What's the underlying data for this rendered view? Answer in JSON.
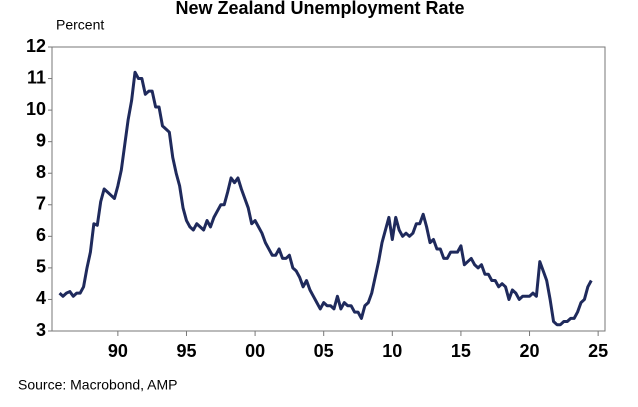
{
  "chart_data": {
    "type": "line",
    "title": "New Zealand Unemployment Rate",
    "y_label": "Percent",
    "source": "Source: Macrobond, AMP",
    "xlim": [
      1985.2,
      2025.5
    ],
    "ylim": [
      3,
      12
    ],
    "yticks": [
      3,
      4,
      5,
      6,
      7,
      8,
      9,
      10,
      11,
      12
    ],
    "xticks": [
      {
        "value": 1990,
        "label": "90"
      },
      {
        "value": 1995,
        "label": "95"
      },
      {
        "value": 2000,
        "label": "00"
      },
      {
        "value": 2005,
        "label": "05"
      },
      {
        "value": 2010,
        "label": "10"
      },
      {
        "value": 2015,
        "label": "15"
      },
      {
        "value": 2020,
        "label": "20"
      },
      {
        "value": 2025,
        "label": "25"
      }
    ],
    "grid": false,
    "x": [
      1985.75,
      1986,
      1986.25,
      1986.5,
      1986.75,
      1987,
      1987.25,
      1987.5,
      1987.75,
      1988,
      1988.25,
      1988.5,
      1988.75,
      1989,
      1989.25,
      1989.5,
      1989.75,
      1990,
      1990.25,
      1990.5,
      1990.75,
      1991,
      1991.25,
      1991.5,
      1991.75,
      1992,
      1992.25,
      1992.5,
      1992.75,
      1993,
      1993.25,
      1993.5,
      1993.75,
      1994,
      1994.25,
      1994.5,
      1994.75,
      1995,
      1995.25,
      1995.5,
      1995.75,
      1996,
      1996.25,
      1996.5,
      1996.75,
      1997,
      1997.25,
      1997.5,
      1997.75,
      1998,
      1998.25,
      1998.5,
      1998.75,
      1999,
      1999.25,
      1999.5,
      1999.75,
      2000,
      2000.25,
      2000.5,
      2000.75,
      2001,
      2001.25,
      2001.5,
      2001.75,
      2002,
      2002.25,
      2002.5,
      2002.75,
      2003,
      2003.25,
      2003.5,
      2003.75,
      2004,
      2004.25,
      2004.5,
      2004.75,
      2005,
      2005.25,
      2005.5,
      2005.75,
      2006,
      2006.25,
      2006.5,
      2006.75,
      2007,
      2007.25,
      2007.5,
      2007.75,
      2008,
      2008.25,
      2008.5,
      2008.75,
      2009,
      2009.25,
      2009.5,
      2009.75,
      2010,
      2010.25,
      2010.5,
      2010.75,
      2011,
      2011.25,
      2011.5,
      2011.75,
      2012,
      2012.25,
      2012.5,
      2012.75,
      2013,
      2013.25,
      2013.5,
      2013.75,
      2014,
      2014.25,
      2014.5,
      2014.75,
      2015,
      2015.25,
      2015.5,
      2015.75,
      2016,
      2016.25,
      2016.5,
      2016.75,
      2017,
      2017.25,
      2017.5,
      2017.75,
      2018,
      2018.25,
      2018.5,
      2018.75,
      2019,
      2019.25,
      2019.5,
      2019.75,
      2020,
      2020.25,
      2020.5,
      2020.75,
      2021,
      2021.25,
      2021.5,
      2021.75,
      2022,
      2022.25,
      2022.5,
      2022.75,
      2023,
      2023.25,
      2023.5,
      2023.75,
      2024,
      2024.25,
      2024.5
    ],
    "series": [
      {
        "name": "Unemployment rate",
        "color": "#1f2a5c",
        "values": [
          4.2,
          4.1,
          4.2,
          4.25,
          4.1,
          4.2,
          4.2,
          4.4,
          5.0,
          5.5,
          6.4,
          6.35,
          7.1,
          7.5,
          7.4,
          7.3,
          7.2,
          7.6,
          8.1,
          8.9,
          9.7,
          10.3,
          11.2,
          11.0,
          11.0,
          10.5,
          10.6,
          10.6,
          10.1,
          10.1,
          9.5,
          9.4,
          9.3,
          8.5,
          8.0,
          7.6,
          6.9,
          6.5,
          6.3,
          6.2,
          6.4,
          6.3,
          6.2,
          6.5,
          6.3,
          6.6,
          6.8,
          7.0,
          7.0,
          7.4,
          7.85,
          7.7,
          7.85,
          7.5,
          7.2,
          6.9,
          6.4,
          6.5,
          6.3,
          6.1,
          5.8,
          5.6,
          5.4,
          5.4,
          5.6,
          5.3,
          5.3,
          5.4,
          5.0,
          4.9,
          4.7,
          4.4,
          4.6,
          4.3,
          4.1,
          3.9,
          3.7,
          3.9,
          3.8,
          3.8,
          3.7,
          4.1,
          3.7,
          3.9,
          3.8,
          3.8,
          3.6,
          3.6,
          3.4,
          3.8,
          3.9,
          4.2,
          4.7,
          5.2,
          5.8,
          6.2,
          6.6,
          5.9,
          6.6,
          6.2,
          6.0,
          6.1,
          6.0,
          6.1,
          6.4,
          6.4,
          6.7,
          6.3,
          5.8,
          5.9,
          5.6,
          5.6,
          5.3,
          5.3,
          5.5,
          5.5,
          5.5,
          5.7,
          5.1,
          5.2,
          5.3,
          5.1,
          5.0,
          5.1,
          4.8,
          4.8,
          4.6,
          4.6,
          4.4,
          4.5,
          4.4,
          4.0,
          4.3,
          4.2,
          4.0,
          4.1,
          4.1,
          4.1,
          4.2,
          4.1,
          5.2,
          4.9,
          4.6,
          4.0,
          3.3,
          3.2,
          3.2,
          3.3,
          3.3,
          3.4,
          3.4,
          3.6,
          3.9,
          4.0,
          4.4,
          4.6
        ]
      }
    ]
  }
}
